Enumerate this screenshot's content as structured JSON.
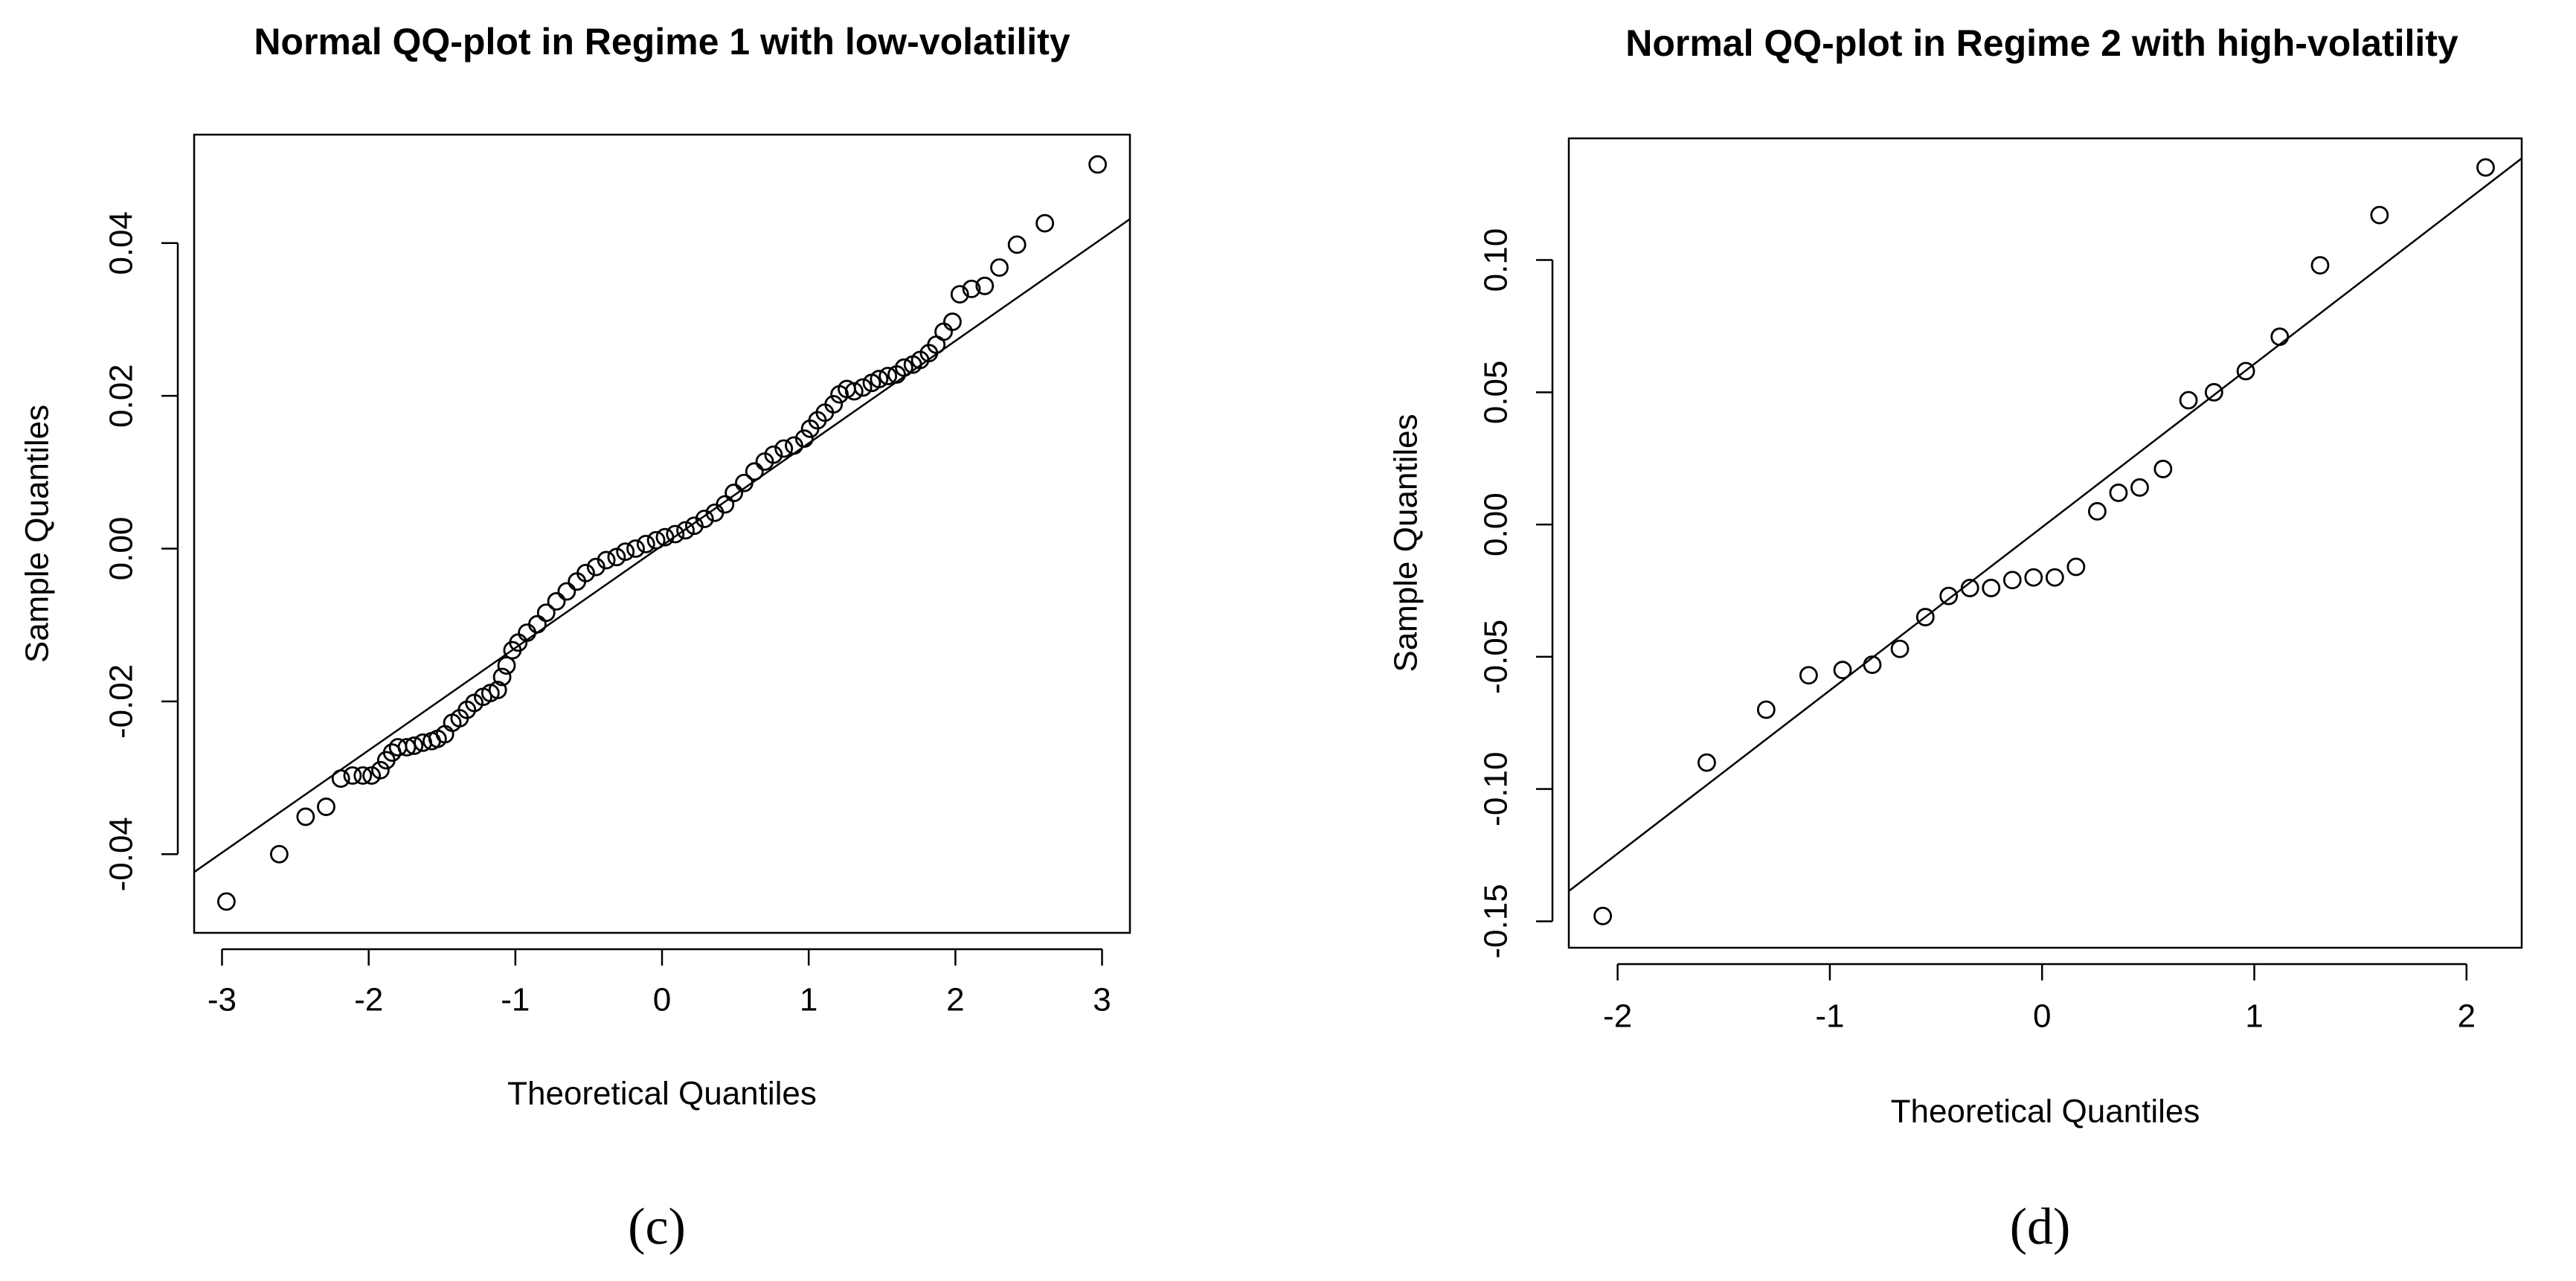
{
  "chart_data": [
    {
      "type": "scatter",
      "title": "Normal QQ-plot in Regime 1 with low-volatility",
      "xlabel": "Theoretical Quantiles",
      "ylabel": "Sample Quantiles",
      "caption": "(c)",
      "xlim": [
        -3.19,
        3.19
      ],
      "ylim": [
        -0.0503,
        0.0542
      ],
      "xticks": [
        -3,
        -2,
        -1,
        0,
        1,
        2,
        3
      ],
      "yticks": [
        -0.04,
        -0.02,
        {
          "value": 0,
          "label": "0.00"
        },
        0.02,
        0.04
      ],
      "color": "#000000",
      "reference_line": {
        "intercept": 0.0004,
        "slope": 0.0134
      },
      "x": [
        -2.97,
        -2.61,
        -2.43,
        -2.29,
        -2.19,
        -2.11,
        -2.04,
        -1.98,
        -1.92,
        -1.88,
        -1.84,
        -1.8,
        -1.74,
        -1.69,
        -1.63,
        -1.57,
        -1.53,
        -1.48,
        -1.43,
        -1.38,
        -1.33,
        -1.28,
        -1.22,
        -1.17,
        -1.12,
        -1.09,
        -1.06,
        -1.02,
        -0.98,
        -0.92,
        -0.85,
        -0.79,
        -0.72,
        -0.65,
        -0.58,
        -0.52,
        -0.45,
        -0.38,
        -0.31,
        -0.25,
        -0.18,
        -0.11,
        -0.04,
        0.02,
        0.09,
        0.16,
        0.22,
        0.29,
        0.36,
        0.43,
        0.49,
        0.56,
        0.63,
        0.7,
        0.76,
        0.83,
        0.9,
        0.97,
        1.01,
        1.06,
        1.11,
        1.17,
        1.21,
        1.26,
        1.31,
        1.37,
        1.43,
        1.48,
        1.54,
        1.6,
        1.65,
        1.71,
        1.76,
        1.82,
        1.87,
        1.92,
        1.98,
        2.03,
        2.11,
        2.2,
        2.3,
        2.42,
        2.61,
        2.97
      ],
      "values": [
        -0.0462,
        -0.04,
        -0.0351,
        -0.0338,
        -0.0301,
        -0.0297,
        -0.0297,
        -0.0297,
        -0.029,
        -0.0277,
        -0.0267,
        -0.026,
        -0.026,
        -0.0258,
        -0.0254,
        -0.0252,
        -0.0249,
        -0.0243,
        -0.0228,
        -0.0222,
        -0.0211,
        -0.0202,
        -0.0194,
        -0.0189,
        -0.0185,
        -0.0168,
        -0.0153,
        -0.0133,
        -0.0123,
        -0.011,
        -0.0099,
        -0.0084,
        -0.0069,
        -0.0056,
        -0.0043,
        -0.0032,
        -0.0024,
        -0.0015,
        -0.0011,
        -0.0004,
        0.0,
        0.0006,
        0.0011,
        0.0015,
        0.0019,
        0.0024,
        0.003,
        0.0039,
        0.0047,
        0.0058,
        0.0073,
        0.0086,
        0.0101,
        0.0114,
        0.0123,
        0.0131,
        0.0135,
        0.0144,
        0.0157,
        0.0168,
        0.0178,
        0.0189,
        0.0202,
        0.0209,
        0.0206,
        0.0211,
        0.0217,
        0.0222,
        0.0226,
        0.0228,
        0.0237,
        0.0241,
        0.0247,
        0.0256,
        0.0267,
        0.0284,
        0.0297,
        0.0333,
        0.034,
        0.0344,
        0.0368,
        0.0398,
        0.0426,
        0.0503
      ]
    },
    {
      "type": "scatter",
      "title": "Normal QQ-plot in Regime 2 with high-volatility",
      "xlabel": "Theoretical Quantiles",
      "ylabel": "Sample Quantiles",
      "caption": "(d)",
      "xlim": [
        -2.23,
        2.26
      ],
      "ylim": [
        -0.16,
        0.146
      ],
      "xticks": [
        -2,
        -1,
        0,
        1,
        2
      ],
      "yticks": [
        -0.15,
        {
          "value": -0.1,
          "label": "-0.10"
        },
        -0.05,
        {
          "value": 0,
          "label": "0.00"
        },
        0.05,
        {
          "value": 0.1,
          "label": "0.10"
        }
      ],
      "color": "#000000",
      "reference_line": {
        "intercept": -0.001,
        "slope": 0.0617
      },
      "x": [
        -2.07,
        -1.58,
        -1.3,
        -1.1,
        -0.94,
        -0.8,
        -0.67,
        -0.55,
        -0.44,
        -0.34,
        -0.24,
        -0.14,
        -0.04,
        0.06,
        0.16,
        0.26,
        0.36,
        0.46,
        0.57,
        0.69,
        0.81,
        0.96,
        1.12,
        1.31,
        1.59,
        2.09
      ],
      "values": [
        -0.148,
        -0.09,
        -0.07,
        -0.057,
        -0.055,
        -0.053,
        -0.047,
        -0.035,
        -0.027,
        -0.024,
        -0.024,
        -0.021,
        -0.02,
        -0.02,
        -0.016,
        0.005,
        0.012,
        0.014,
        0.021,
        0.047,
        0.05,
        0.058,
        0.071,
        0.098,
        0.117,
        0.135
      ]
    }
  ]
}
